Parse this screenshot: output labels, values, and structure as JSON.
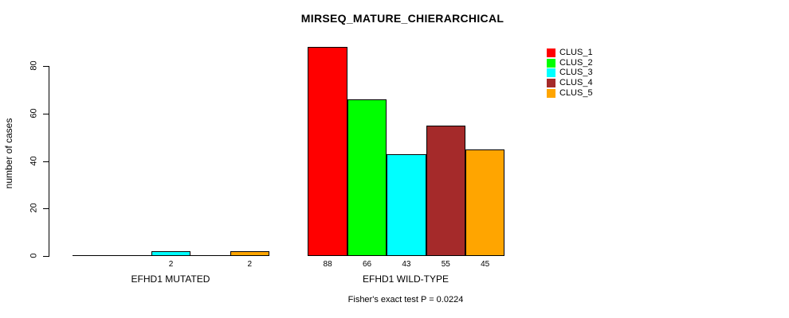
{
  "chart_data": {
    "type": "bar",
    "title": "MIRSEQ_MATURE_CHIERARCHICAL",
    "ylabel": "number of cases",
    "xlabel": "",
    "footer": "Fisher's exact test P = 0.0224",
    "categories": [
      "EFHD1 MUTATED",
      "EFHD1 WILD-TYPE"
    ],
    "series": [
      {
        "name": "CLUS_1",
        "color": "#FF0000",
        "values": [
          0,
          88
        ]
      },
      {
        "name": "CLUS_2",
        "color": "#00FF00",
        "values": [
          0,
          66
        ]
      },
      {
        "name": "CLUS_3",
        "color": "#00FFFF",
        "values": [
          2,
          43
        ]
      },
      {
        "name": "CLUS_4",
        "color": "#A52A2A",
        "values": [
          0,
          55
        ]
      },
      {
        "name": "CLUS_5",
        "color": "#FFA500",
        "values": [
          2,
          45
        ]
      }
    ],
    "value_labels_shown": [
      "2",
      "2",
      "88",
      "66",
      "43",
      "55",
      "45"
    ],
    "yticks": [
      0,
      20,
      40,
      60,
      80
    ],
    "ylim": [
      0,
      88
    ],
    "grid": false,
    "legend_position": "top-right",
    "bar_border_color": "#000000",
    "background_color": "#FFFFFF"
  }
}
